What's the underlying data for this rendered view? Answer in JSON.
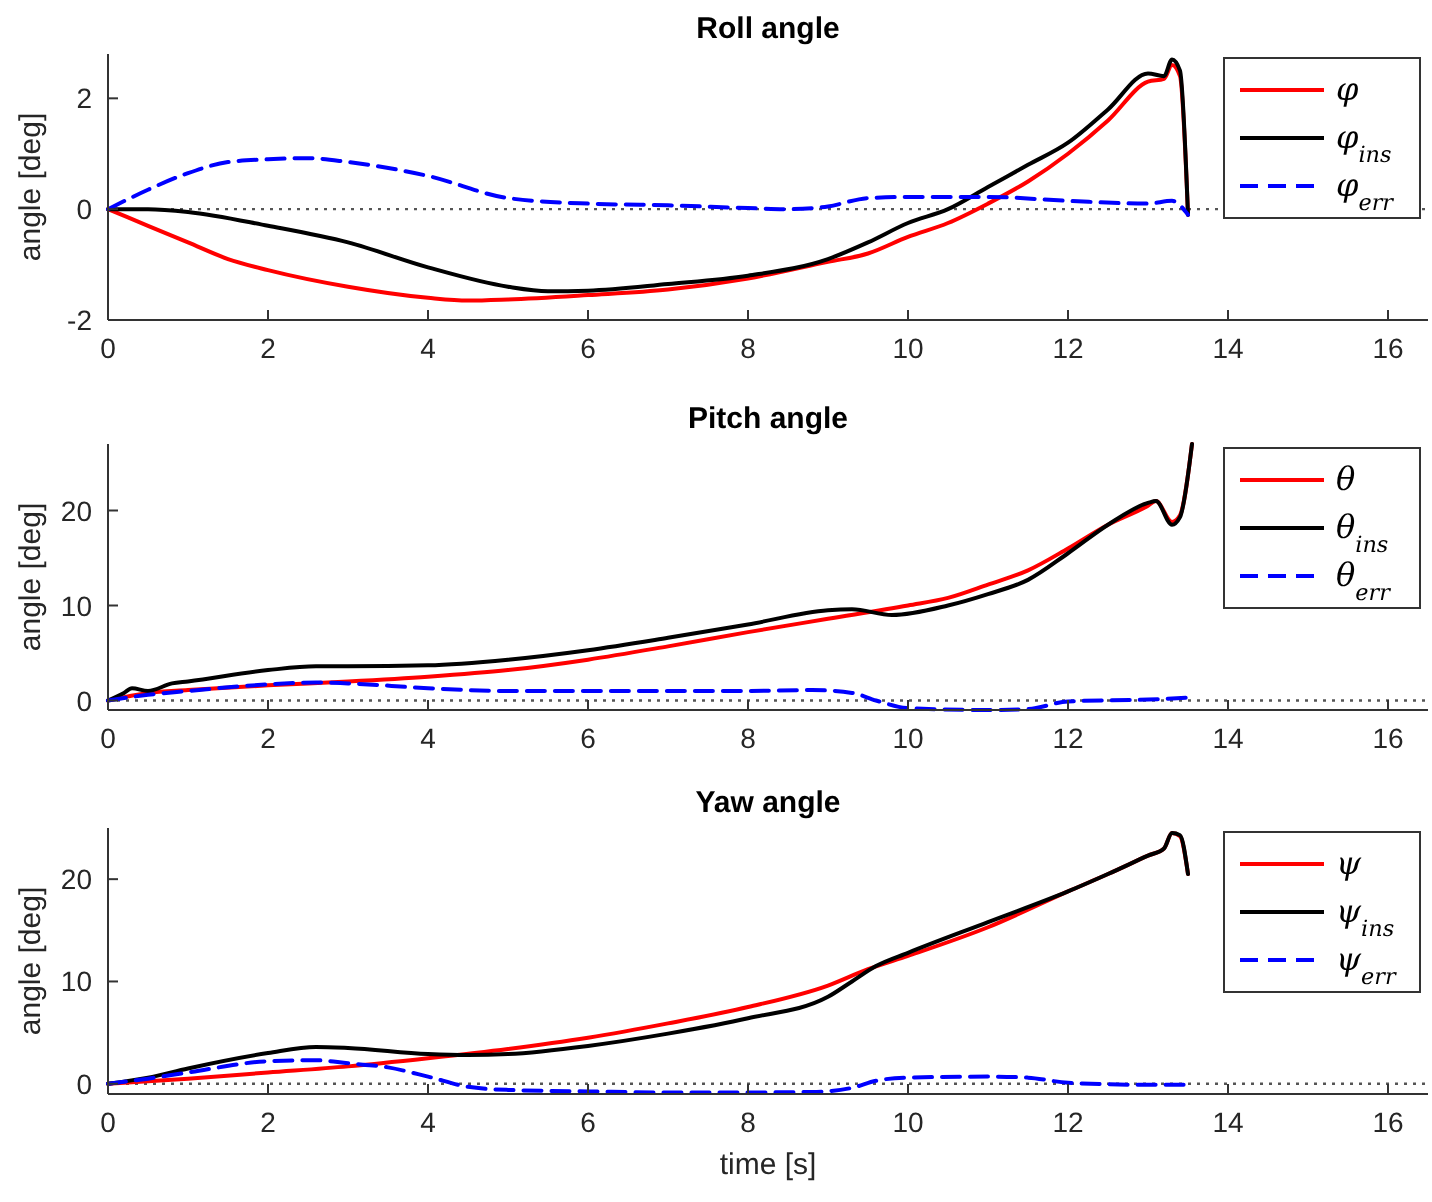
{
  "chart_data": [
    {
      "type": "line",
      "title": "Roll angle",
      "ylabel": "angle [deg]",
      "xlim": [
        0,
        16.5
      ],
      "xticks": [
        0,
        2,
        4,
        6,
        8,
        10,
        12,
        14,
        16
      ],
      "ylim": [
        -2,
        2.8
      ],
      "yticks": [
        -2,
        0,
        2
      ],
      "grid": false,
      "legend": "top right",
      "ref_lines": [
        {
          "axis": "y",
          "value": 0,
          "color": "#555555",
          "line_style": "dotted"
        }
      ],
      "series": [
        {
          "name": "φ",
          "color": "#ff0000",
          "line_style": "solid",
          "x": [
            0,
            0.5,
            1,
            1.5,
            2,
            3,
            4,
            4.5,
            5,
            6,
            7,
            8,
            9,
            9.5,
            10,
            10.5,
            11,
            11.5,
            12,
            12.5,
            13,
            13.2,
            13.3,
            13.4,
            13.5
          ],
          "values": [
            0,
            -0.3,
            -0.6,
            -0.9,
            -1.1,
            -1.4,
            -1.6,
            -1.65,
            -1.63,
            -1.55,
            -1.45,
            -1.25,
            -0.95,
            -0.8,
            -0.5,
            -0.25,
            0.1,
            0.5,
            1.0,
            1.6,
            2.3,
            2.35,
            2.6,
            2.4,
            -0.1
          ]
        },
        {
          "name": "φ$_{ins}$",
          "color": "#000000",
          "line_style": "solid",
          "x": [
            0,
            0.5,
            1,
            2,
            3,
            4,
            5,
            5.5,
            6,
            7,
            8,
            9,
            9.5,
            10,
            10.5,
            11,
            11.5,
            12,
            12.5,
            13,
            13.2,
            13.3,
            13.4,
            13.5
          ],
          "values": [
            0,
            0,
            -0.05,
            -0.3,
            -0.6,
            -1.05,
            -1.4,
            -1.48,
            -1.47,
            -1.35,
            -1.2,
            -0.9,
            -0.6,
            -0.25,
            0,
            0.4,
            0.8,
            1.2,
            1.8,
            2.45,
            2.4,
            2.7,
            2.5,
            -0.1
          ]
        },
        {
          "name": "φ$_{err}$",
          "color": "#0000ff",
          "line_style": "dashed",
          "x": [
            0,
            0.5,
            1,
            1.5,
            2,
            2.5,
            3,
            4,
            5,
            6,
            7,
            8,
            8.5,
            9,
            9.5,
            10,
            11,
            12,
            13,
            13.3,
            13.5
          ],
          "values": [
            0,
            0.35,
            0.65,
            0.85,
            0.9,
            0.92,
            0.85,
            0.6,
            0.2,
            0.1,
            0.07,
            0.02,
            0,
            0.05,
            0.2,
            0.22,
            0.22,
            0.15,
            0.1,
            0.15,
            -0.1
          ]
        }
      ]
    },
    {
      "type": "line",
      "title": "Pitch angle",
      "ylabel": "angle [deg]",
      "xlim": [
        0,
        16.5
      ],
      "xticks": [
        0,
        2,
        4,
        6,
        8,
        10,
        12,
        14,
        16
      ],
      "ylim": [
        -1,
        27
      ],
      "yticks": [
        0,
        10,
        20
      ],
      "grid": false,
      "legend": "top right",
      "ref_lines": [
        {
          "axis": "y",
          "value": 0,
          "color": "#555555",
          "line_style": "dotted"
        }
      ],
      "series": [
        {
          "name": "θ",
          "color": "#ff0000",
          "line_style": "solid",
          "x": [
            0,
            0.5,
            1,
            2,
            3,
            4,
            5,
            6,
            7,
            8,
            9,
            10,
            10.5,
            11,
            11.5,
            12,
            12.5,
            13,
            13.1,
            13.3,
            13.4,
            13.55
          ],
          "values": [
            0,
            0.8,
            1.1,
            1.6,
            2,
            2.5,
            3.2,
            4.3,
            5.7,
            7.2,
            8.6,
            10,
            10.8,
            12.2,
            13.7,
            16,
            18.5,
            20.5,
            21,
            18.8,
            19.5,
            27
          ]
        },
        {
          "name": "θ$_{ins}$",
          "color": "#000000",
          "line_style": "solid",
          "x": [
            0,
            0.2,
            0.3,
            0.5,
            0.8,
            1,
            2,
            2.6,
            3,
            4,
            5,
            6,
            7,
            8,
            9,
            9.3,
            9.8,
            10.5,
            11,
            11.5,
            12,
            12.5,
            13,
            13.1,
            13.3,
            13.4,
            13.55
          ],
          "values": [
            0,
            0.8,
            1.3,
            1.0,
            1.8,
            2,
            3.2,
            3.6,
            3.6,
            3.7,
            4.3,
            5.3,
            6.6,
            8,
            9.5,
            9.6,
            9,
            10,
            11.2,
            12.7,
            15.5,
            18.5,
            20.8,
            21,
            18.5,
            19.3,
            27
          ]
        },
        {
          "name": "θ$_{err}$",
          "color": "#0000ff",
          "line_style": "dashed",
          "x": [
            0,
            0.5,
            1,
            2,
            2.6,
            3,
            4,
            5,
            6,
            7,
            8,
            8.8,
            9.3,
            9.6,
            10,
            11,
            11.5,
            12,
            13,
            13.5
          ],
          "values": [
            0,
            0.6,
            1.0,
            1.7,
            1.9,
            1.8,
            1.3,
            1.0,
            1.0,
            1.0,
            1.0,
            1.1,
            0.8,
            0,
            -0.8,
            -1.0,
            -0.9,
            -0.1,
            0.1,
            0.3
          ]
        }
      ]
    },
    {
      "type": "line",
      "title": "Yaw angle",
      "xlabel": "time [s]",
      "ylabel": "angle [deg]",
      "xlim": [
        0,
        16.5
      ],
      "xticks": [
        0,
        2,
        4,
        6,
        8,
        10,
        12,
        14,
        16
      ],
      "ylim": [
        -1,
        25
      ],
      "yticks": [
        0,
        10,
        20
      ],
      "grid": false,
      "legend": "top right",
      "ref_lines": [
        {
          "axis": "y",
          "value": 0,
          "color": "#555555",
          "line_style": "dotted"
        }
      ],
      "series": [
        {
          "name": "ψ",
          "color": "#ff0000",
          "line_style": "solid",
          "x": [
            0,
            1,
            2,
            3,
            4,
            5,
            6,
            7,
            8,
            9,
            9.5,
            10,
            11,
            12,
            12.5,
            13,
            13.2,
            13.3,
            13.4,
            13.5
          ],
          "values": [
            0,
            0.5,
            1.1,
            1.7,
            2.5,
            3.4,
            4.5,
            5.9,
            7.5,
            9.6,
            11.2,
            12.5,
            15.3,
            18.8,
            20.5,
            22.3,
            23,
            24.5,
            24.2,
            20.5
          ]
        },
        {
          "name": "ψ$_{ins}$",
          "color": "#000000",
          "line_style": "solid",
          "x": [
            0,
            0.5,
            1,
            2,
            2.6,
            3,
            4,
            4.5,
            5,
            6,
            7,
            8,
            9,
            9.3,
            9.6,
            10,
            11,
            12,
            12.5,
            13,
            13.2,
            13.3,
            13.4,
            13.5
          ],
          "values": [
            0,
            0.6,
            1.5,
            3.0,
            3.6,
            3.5,
            2.9,
            2.8,
            2.9,
            3.7,
            4.9,
            6.4,
            8.5,
            10,
            11.5,
            12.8,
            15.8,
            18.8,
            20.5,
            22.3,
            23,
            24.5,
            24.3,
            20.5
          ]
        },
        {
          "name": "ψ$_{err}$",
          "color": "#0000ff",
          "line_style": "dashed",
          "x": [
            0,
            0.5,
            1,
            2,
            2.6,
            3,
            3.5,
            4,
            4.5,
            5,
            6,
            7,
            8,
            8.8,
            9.3,
            9.6,
            10,
            11,
            11.5,
            12,
            13,
            13.5
          ],
          "values": [
            0,
            0.5,
            1.1,
            2.2,
            2.3,
            2.0,
            1.6,
            0.7,
            -0.3,
            -0.6,
            -0.75,
            -0.85,
            -0.85,
            -0.8,
            -0.4,
            0.3,
            0.6,
            0.7,
            0.6,
            0.1,
            -0.1,
            -0.1
          ]
        }
      ]
    }
  ]
}
